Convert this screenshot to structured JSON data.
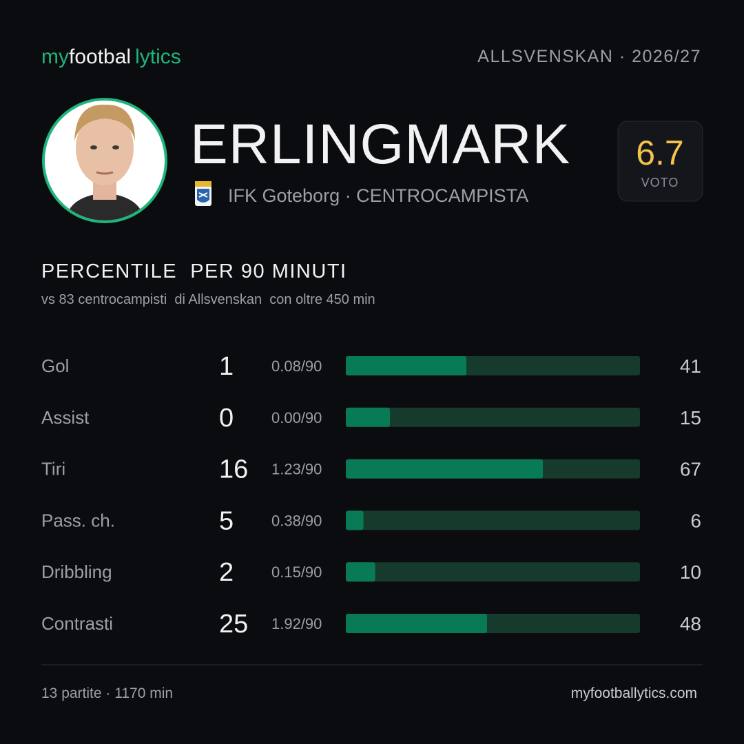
{
  "logo": {
    "part1": "my",
    "part2": "footbal",
    "part3": "lytics"
  },
  "competition": "ALLSVENSKAN · 2026/27",
  "player": {
    "name": "ERLINGMARK",
    "club_role": "IFK Goteborg · CENTROCAMPISTA"
  },
  "rating": {
    "value": "6.7",
    "label": "VOTO"
  },
  "section": {
    "title": "PERCENTILE  PER 90 MINUTI",
    "subtitle": "vs 83 centrocampisti  di Allsvenskan  con oltre 450 min"
  },
  "scale": [
    0,
    100
  ],
  "rows": [
    {
      "label": "Gol",
      "total": 1,
      "per90": "0.08/90",
      "percentile": 41
    },
    {
      "label": "Assist",
      "total": 0,
      "per90": "0.00/90",
      "percentile": 15
    },
    {
      "label": "Tiri",
      "total": 16,
      "per90": "1.23/90",
      "percentile": 67
    },
    {
      "label": "Pass. ch.",
      "total": 5,
      "per90": "0.38/90",
      "percentile": 6
    },
    {
      "label": "Dribbling",
      "total": 2,
      "per90": "0.15/90",
      "percentile": 10
    },
    {
      "label": "Contrasti",
      "total": 25,
      "per90": "1.92/90",
      "percentile": 48
    }
  ],
  "footer": {
    "left": "13 partite · 1170 min",
    "right": "myfootballytics.com"
  }
}
